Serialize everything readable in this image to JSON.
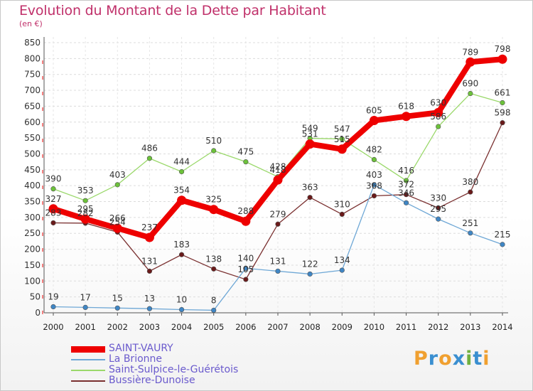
{
  "title": "Evolution du Montant de la Dette par Habitant",
  "unit": "(en €)",
  "logo": {
    "letters": [
      "P",
      "r",
      "o",
      "x",
      "i",
      "t",
      "i"
    ],
    "colors": [
      "#f0a030",
      "#3a8fd0",
      "#f0a030",
      "#3a8fd0",
      "#70b040",
      "#3a8fd0",
      "#f0a030"
    ]
  },
  "chart_data": {
    "type": "line",
    "x": [
      "2000",
      "2001",
      "2002",
      "2003",
      "2004",
      "2005",
      "2006",
      "2007",
      "2008",
      "2009",
      "2010",
      "2011",
      "2012",
      "2013",
      "2014"
    ],
    "ylim": [
      0,
      850
    ],
    "yticks": [
      0,
      50,
      100,
      150,
      200,
      250,
      300,
      350,
      400,
      450,
      500,
      550,
      600,
      650,
      700,
      750,
      800,
      850
    ],
    "grid": true,
    "legend_position": "bottom-left",
    "series": [
      {
        "name": "SAINT-VAURY",
        "color": "#ee0000",
        "point_color": "#ee0000",
        "width": 8,
        "values": [
          327,
          295,
          266,
          237,
          354,
          325,
          288,
          418,
          531,
          515,
          605,
          618,
          630,
          789,
          798
        ]
      },
      {
        "name": "La Brionne",
        "color": "#6fa8d6",
        "point_color": "#3f86c5",
        "width": 1.3,
        "values": [
          19,
          17,
          15,
          13,
          10,
          8,
          140,
          131,
          122,
          134,
          403,
          346,
          295,
          251,
          215
        ]
      },
      {
        "name": "Saint-Sulpice-le-Guérétois",
        "color": "#9ad86a",
        "point_color": "#6cc23a",
        "width": 1.3,
        "values": [
          390,
          353,
          403,
          486,
          444,
          510,
          475,
          428,
          549,
          547,
          482,
          416,
          586,
          690,
          661
        ]
      },
      {
        "name": "Bussière-Dunoise",
        "color": "#7a3030",
        "point_color": "#6a1a1a",
        "width": 1.3,
        "values": [
          283,
          282,
          254,
          131,
          183,
          138,
          105,
          279,
          363,
          310,
          368,
          372,
          330,
          380,
          598
        ]
      }
    ]
  }
}
